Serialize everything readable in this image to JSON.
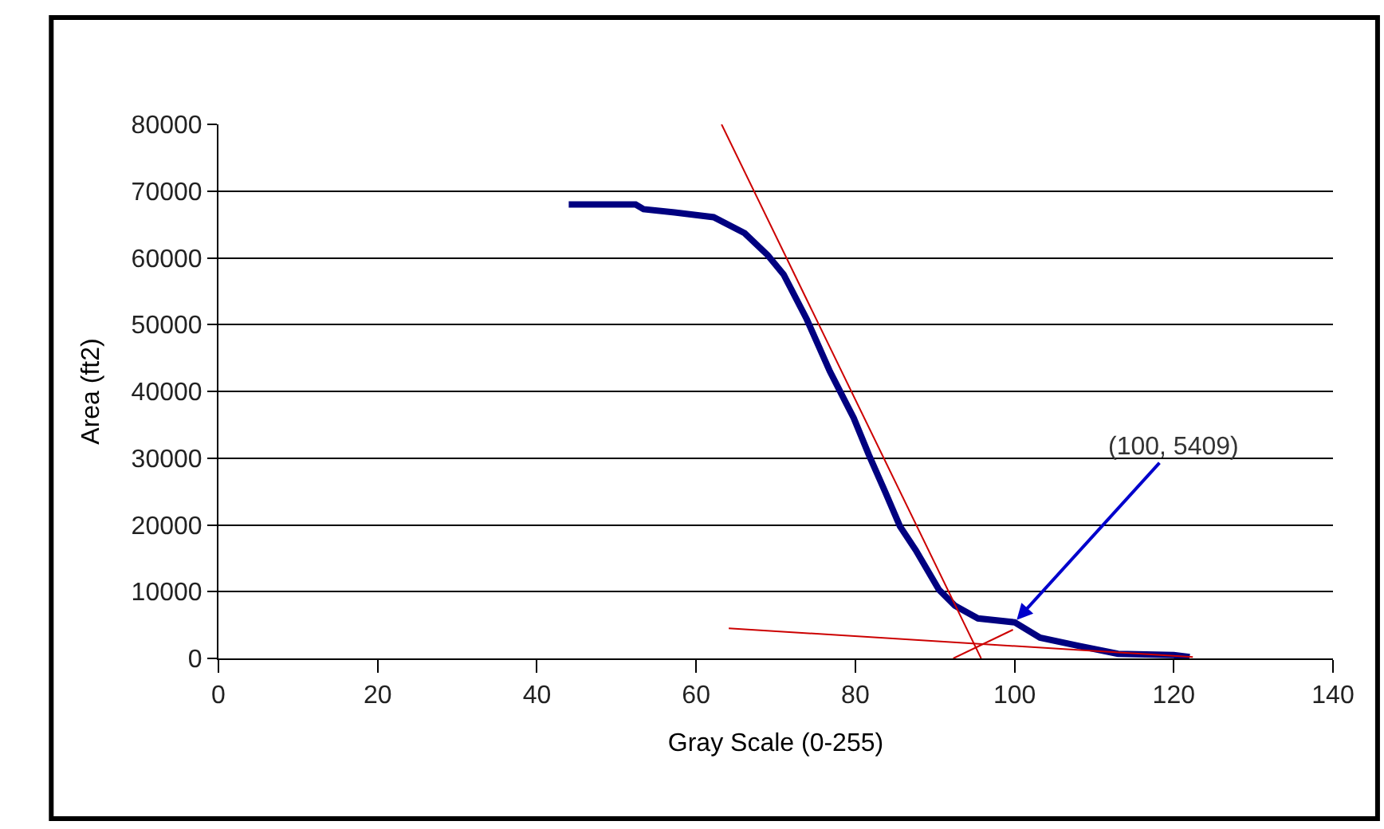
{
  "chart_data": {
    "type": "line",
    "xlabel": "Gray Scale (0-255)",
    "ylabel": "Area (ft2)",
    "xlim": [
      0,
      140
    ],
    "xticks": [
      0,
      20,
      40,
      60,
      80,
      100,
      120,
      140
    ],
    "ylim": [
      0,
      80000
    ],
    "yticks": [
      0,
      10000,
      20000,
      30000,
      40000,
      50000,
      60000,
      70000,
      80000
    ],
    "grid": "y",
    "marker": "none",
    "line_style": "solid",
    "series": [
      {
        "color": "#000080",
        "x": [
          44,
          52.4,
          53.4,
          57.3,
          62.2,
          66.1,
          69,
          71,
          73.9,
          76.8,
          79.8,
          81.7,
          83.7,
          85.6,
          87.6,
          90.5,
          92.5,
          95.4,
          100,
          103.2,
          108,
          113,
          120,
          122
        ],
        "values": [
          68000,
          68000,
          67300,
          66800,
          66100,
          63700,
          60400,
          57500,
          50800,
          43000,
          36000,
          30500,
          25100,
          19800,
          16200,
          10300,
          7900,
          6000,
          5409,
          3100,
          1900,
          700,
          500,
          200
        ]
      },
      {
        "color": "#cc0000",
        "x": [
          63.2,
          95.8
        ],
        "values": [
          80000,
          0
        ]
      },
      {
        "color": "#cc0000",
        "x": [
          64.1,
          122.4
        ],
        "values": [
          4500,
          200
        ]
      },
      {
        "color": "#cc0000",
        "x": [
          92.3,
          99.8
        ],
        "values": [
          0,
          4300
        ]
      }
    ],
    "annotations": [
      {
        "text": "(100, 5409)",
        "x": 100,
        "y": 5409
      }
    ]
  }
}
